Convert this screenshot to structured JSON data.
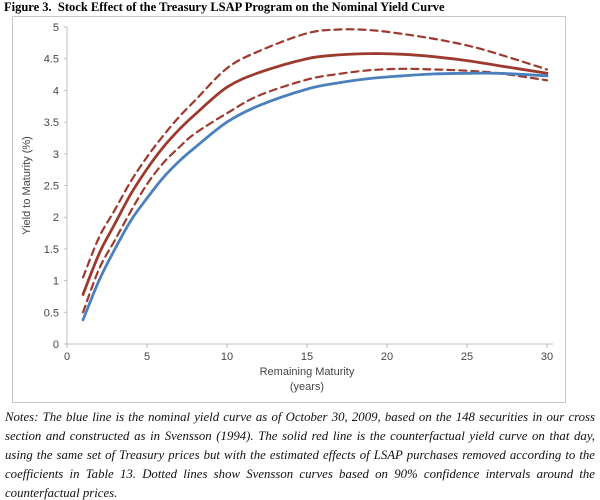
{
  "title": "Figure 3.  Stock Effect of the Treasury LSAP Program on the Nominal Yield Curve",
  "notes": "Notes: The blue line is the nominal yield curve as of October 30, 2009, based on the 148 securities in our cross section and constructed as in Svensson (1994).  The solid red line is the counterfactual yield curve on that day, using the same set of Treasury prices but with the estimated effects of LSAP purchases removed according to the coefficients in Table 13.  Dotted lines show Svensson curves based on 90% confidence intervals around the counterfactual prices.",
  "colors": {
    "blue_line": "#4a80bd",
    "red_line": "#9e392e",
    "axis": "#bfbfbf",
    "tick_text": "#454545",
    "frame_border": "#c6c6c6"
  },
  "chart_data": {
    "type": "line",
    "title": "Stock Effect of the Treasury LSAP Program on the Nominal Yield Curve",
    "xlabel": "Remaining Maturity",
    "xlabel_sub": "(years)",
    "ylabel": "Yield to Maturity (%)",
    "xlim": [
      0,
      30
    ],
    "ylim": [
      0,
      5
    ],
    "x_tick_labels": [
      "0",
      "5",
      "10",
      "15",
      "20",
      "25",
      "30"
    ],
    "x_tick_values": [
      0,
      5,
      10,
      15,
      20,
      25,
      30
    ],
    "y_tick_labels": [
      "0",
      "0.5",
      "1",
      "1.5",
      "2",
      "2.5",
      "3",
      "3.5",
      "4",
      "4.5",
      "5"
    ],
    "y_tick_values": [
      0,
      0.5,
      1,
      1.5,
      2,
      2.5,
      3,
      3.5,
      4,
      4.5,
      5
    ],
    "grid": false,
    "legend": "none (series identified in notes)",
    "x": [
      1,
      2,
      3,
      4,
      5,
      6,
      7,
      8,
      10,
      12,
      15,
      17,
      19,
      21,
      23,
      25,
      27,
      30
    ],
    "series": [
      {
        "key": "ci-upper",
        "name": "90% confidence interval upper bound (dotted red)",
        "color": "#9e392e",
        "style": "dashed",
        "values": [
          1.05,
          1.68,
          2.12,
          2.57,
          2.95,
          3.28,
          3.58,
          3.84,
          4.35,
          4.62,
          4.9,
          4.96,
          4.95,
          4.89,
          4.81,
          4.71,
          4.57,
          4.33
        ]
      },
      {
        "key": "ci-lower",
        "name": "90% confidence interval lower bound (dotted red)",
        "color": "#9e392e",
        "style": "dashed",
        "values": [
          0.5,
          1.18,
          1.64,
          2.1,
          2.52,
          2.85,
          3.1,
          3.32,
          3.64,
          3.92,
          4.17,
          4.26,
          4.32,
          4.34,
          4.33,
          4.31,
          4.27,
          4.16
        ]
      },
      {
        "key": "counterfactual-yield-curve",
        "name": "Counterfactual yield curve, LSAP effects removed (solid red)",
        "color": "#9e392e",
        "style": "solid",
        "values": [
          0.78,
          1.42,
          1.9,
          2.37,
          2.76,
          3.1,
          3.38,
          3.62,
          4.05,
          4.28,
          4.5,
          4.56,
          4.58,
          4.57,
          4.53,
          4.47,
          4.39,
          4.27
        ]
      },
      {
        "key": "nominal-yield-curve",
        "name": "Nominal yield curve as of October 30, 2009 (blue)",
        "color": "#4a80bd",
        "style": "solid",
        "values": [
          0.38,
          1.0,
          1.5,
          1.95,
          2.3,
          2.62,
          2.88,
          3.1,
          3.5,
          3.76,
          4.02,
          4.12,
          4.19,
          4.23,
          4.26,
          4.27,
          4.27,
          4.23
        ]
      }
    ]
  }
}
